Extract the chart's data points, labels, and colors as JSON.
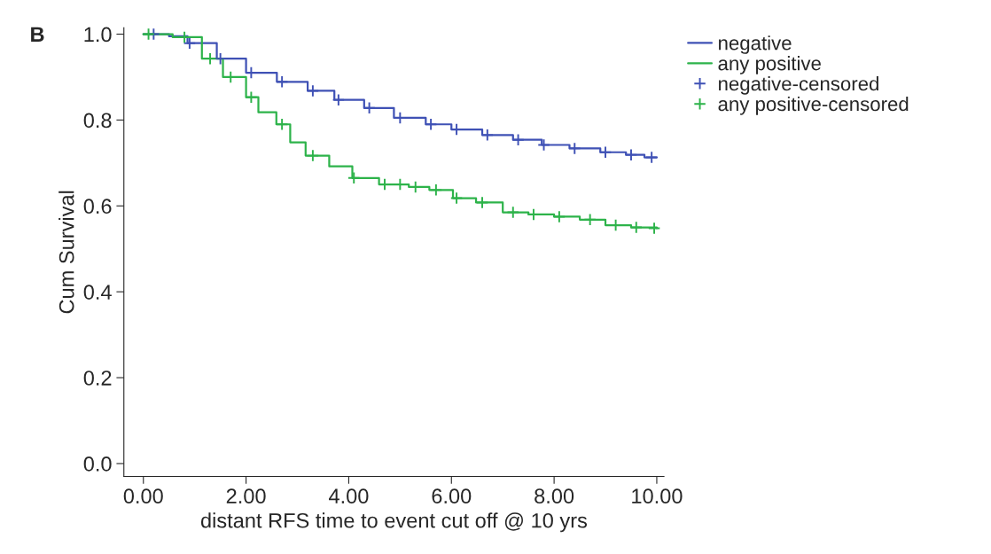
{
  "chart_data": {
    "type": "step",
    "xlabel": "distant RFS time to event cut off @ 10 yrs",
    "ylabel": "Cum Survival",
    "annotations": [
      "B"
    ],
    "xlim": [
      -0.38,
      10.14
    ],
    "ylim": [
      -0.03,
      1.015
    ],
    "xticks": [
      {
        "value": 0,
        "label": "0.00"
      },
      {
        "value": 2,
        "label": "2.00"
      },
      {
        "value": 4,
        "label": "4.00"
      },
      {
        "value": 6,
        "label": "6.00"
      },
      {
        "value": 8,
        "label": "8.00"
      },
      {
        "value": 10,
        "label": "10.00"
      }
    ],
    "yticks": [
      {
        "value": 0,
        "label": "0.0"
      },
      {
        "value": 0.2,
        "label": "0.2"
      },
      {
        "value": 0.4,
        "label": "0.4"
      },
      {
        "value": 0.6,
        "label": "0.6"
      },
      {
        "value": 0.8,
        "label": "0.8"
      },
      {
        "value": 1.0,
        "label": "1.0"
      }
    ],
    "grid": false,
    "legend": "top right",
    "series": [
      {
        "name": "negative",
        "color": "#3f51b5",
        "x": [
          0,
          0.5,
          0.86,
          1.43,
          2.0,
          2.6,
          3.2,
          3.72,
          4.3,
          4.88,
          5.5,
          6.0,
          6.6,
          7.2,
          7.76,
          8.3,
          8.9,
          9.4,
          9.76,
          10.0
        ],
        "values": [
          1.0,
          0.995,
          0.979,
          0.943,
          0.91,
          0.889,
          0.868,
          0.847,
          0.828,
          0.805,
          0.79,
          0.778,
          0.765,
          0.754,
          0.742,
          0.734,
          0.725,
          0.719,
          0.713,
          0.713
        ]
      },
      {
        "name": "any positive",
        "color": "#2db34a",
        "x": [
          0,
          0.57,
          1.14,
          1.55,
          2.0,
          2.24,
          2.59,
          2.86,
          3.16,
          3.62,
          4.07,
          4.59,
          5.17,
          5.57,
          6.03,
          6.48,
          7.0,
          7.5,
          8.0,
          8.5,
          9.0,
          9.5,
          10.0
        ],
        "values": [
          1.0,
          0.993,
          0.943,
          0.9,
          0.853,
          0.818,
          0.79,
          0.748,
          0.717,
          0.692,
          0.665,
          0.65,
          0.644,
          0.637,
          0.618,
          0.608,
          0.585,
          0.58,
          0.575,
          0.568,
          0.555,
          0.55,
          0.548
        ]
      },
      {
        "name": "negative-censored",
        "type": "scatter",
        "marker": "cross",
        "color": "#3f51b5",
        "x": [
          0.2,
          0.9,
          1.5,
          2.1,
          2.7,
          3.3,
          3.8,
          4.4,
          5.0,
          5.6,
          6.1,
          6.7,
          7.3,
          7.8,
          8.4,
          9.0,
          9.5,
          9.9
        ],
        "values": [
          1.0,
          0.979,
          0.943,
          0.91,
          0.889,
          0.868,
          0.847,
          0.828,
          0.805,
          0.79,
          0.778,
          0.765,
          0.754,
          0.742,
          0.734,
          0.725,
          0.719,
          0.713
        ]
      },
      {
        "name": "any positive-censored",
        "type": "scatter",
        "marker": "cross",
        "color": "#2db34a",
        "x": [
          0.1,
          0.8,
          1.3,
          1.7,
          2.1,
          2.7,
          3.3,
          4.1,
          4.7,
          5.0,
          5.3,
          5.7,
          6.1,
          6.6,
          7.2,
          7.6,
          8.1,
          8.7,
          9.2,
          9.6,
          9.95
        ],
        "values": [
          1.0,
          0.993,
          0.943,
          0.9,
          0.853,
          0.79,
          0.717,
          0.665,
          0.65,
          0.65,
          0.644,
          0.637,
          0.618,
          0.608,
          0.585,
          0.58,
          0.575,
          0.568,
          0.555,
          0.55,
          0.548
        ]
      }
    ]
  }
}
